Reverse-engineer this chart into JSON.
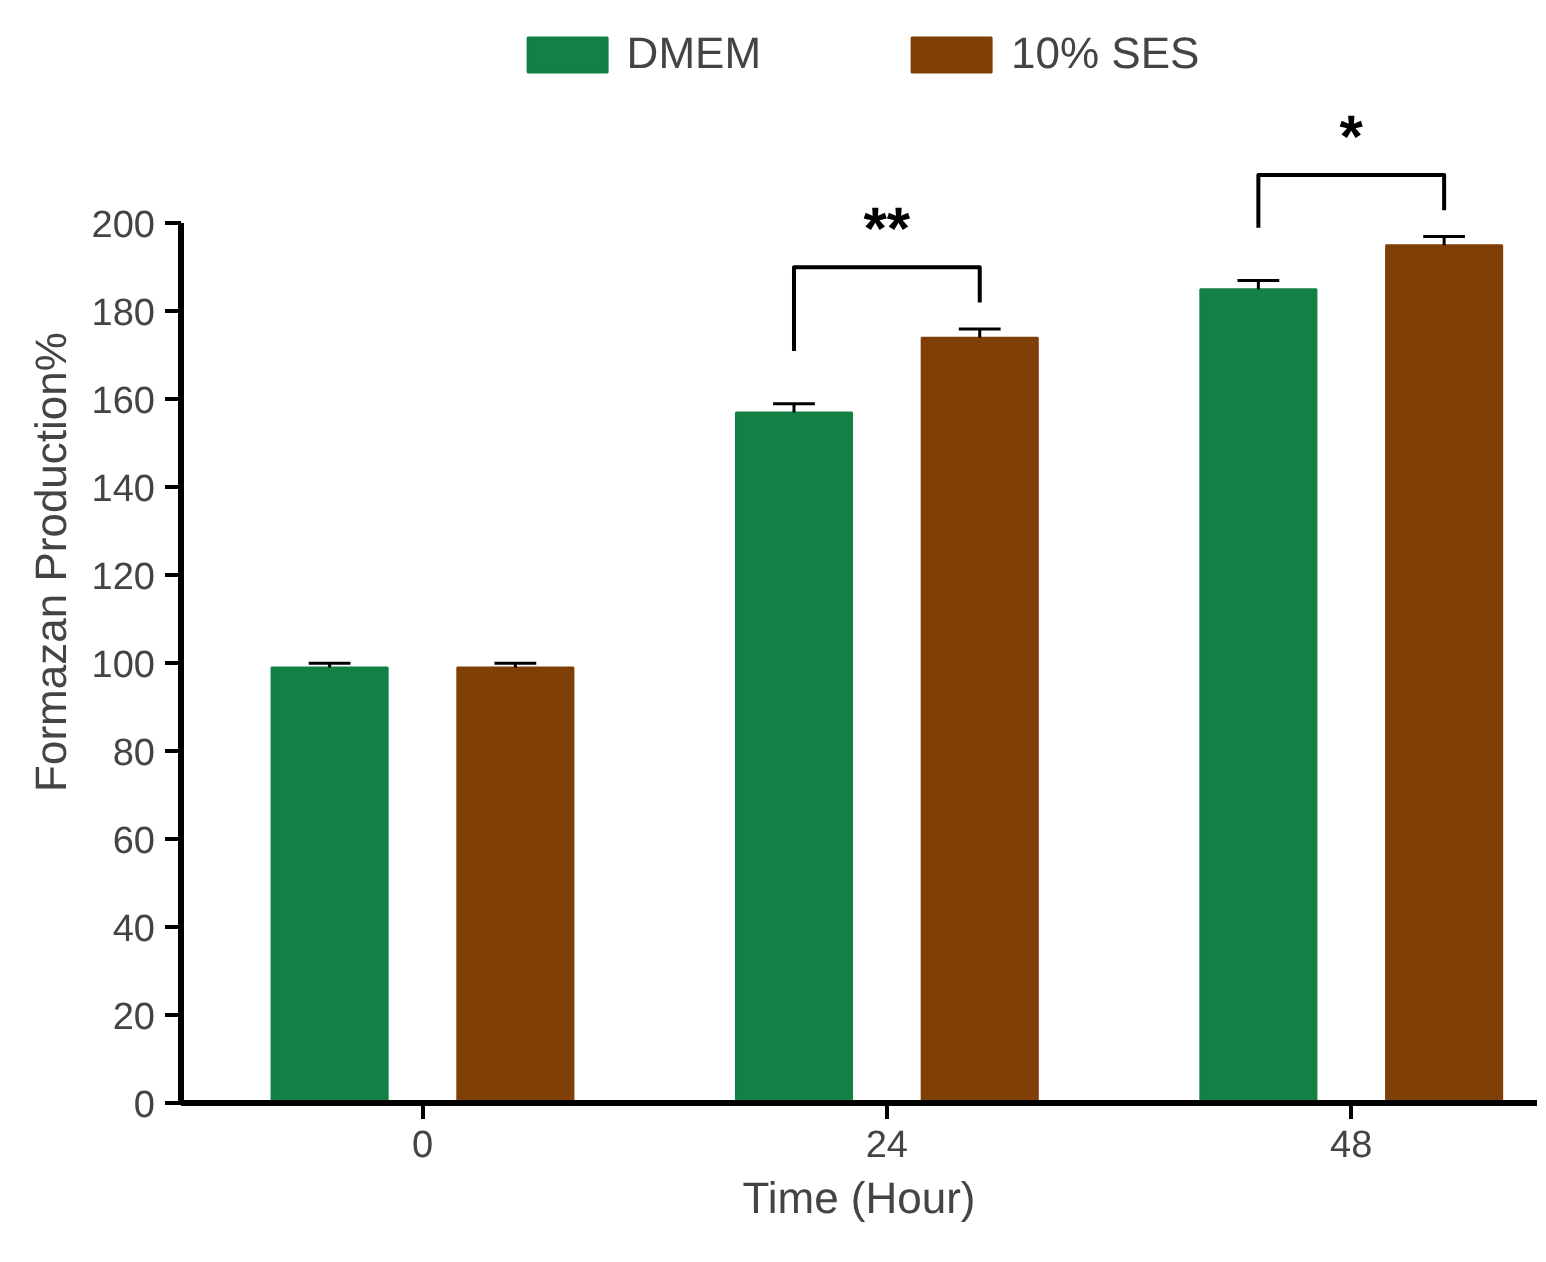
{
  "chart_data": {
    "type": "bar",
    "xlabel": "Time (Hour)",
    "ylabel": "Formazan Production%",
    "categories": [
      "0",
      "24",
      "48"
    ],
    "series": [
      {
        "name": "DMEM",
        "color": "#138045",
        "values": [
          99,
          157,
          185
        ],
        "errors": [
          1,
          2,
          2
        ]
      },
      {
        "name": "10% SES",
        "color": "#7f3f06",
        "values": [
          99,
          174,
          195
        ],
        "errors": [
          1,
          2,
          2
        ]
      }
    ],
    "ylim": [
      0,
      200
    ],
    "yticks": [
      0,
      20,
      40,
      60,
      80,
      100,
      120,
      140,
      160,
      180,
      200
    ],
    "annotations": [
      "**",
      "*"
    ],
    "grid": false,
    "legend": "top"
  }
}
